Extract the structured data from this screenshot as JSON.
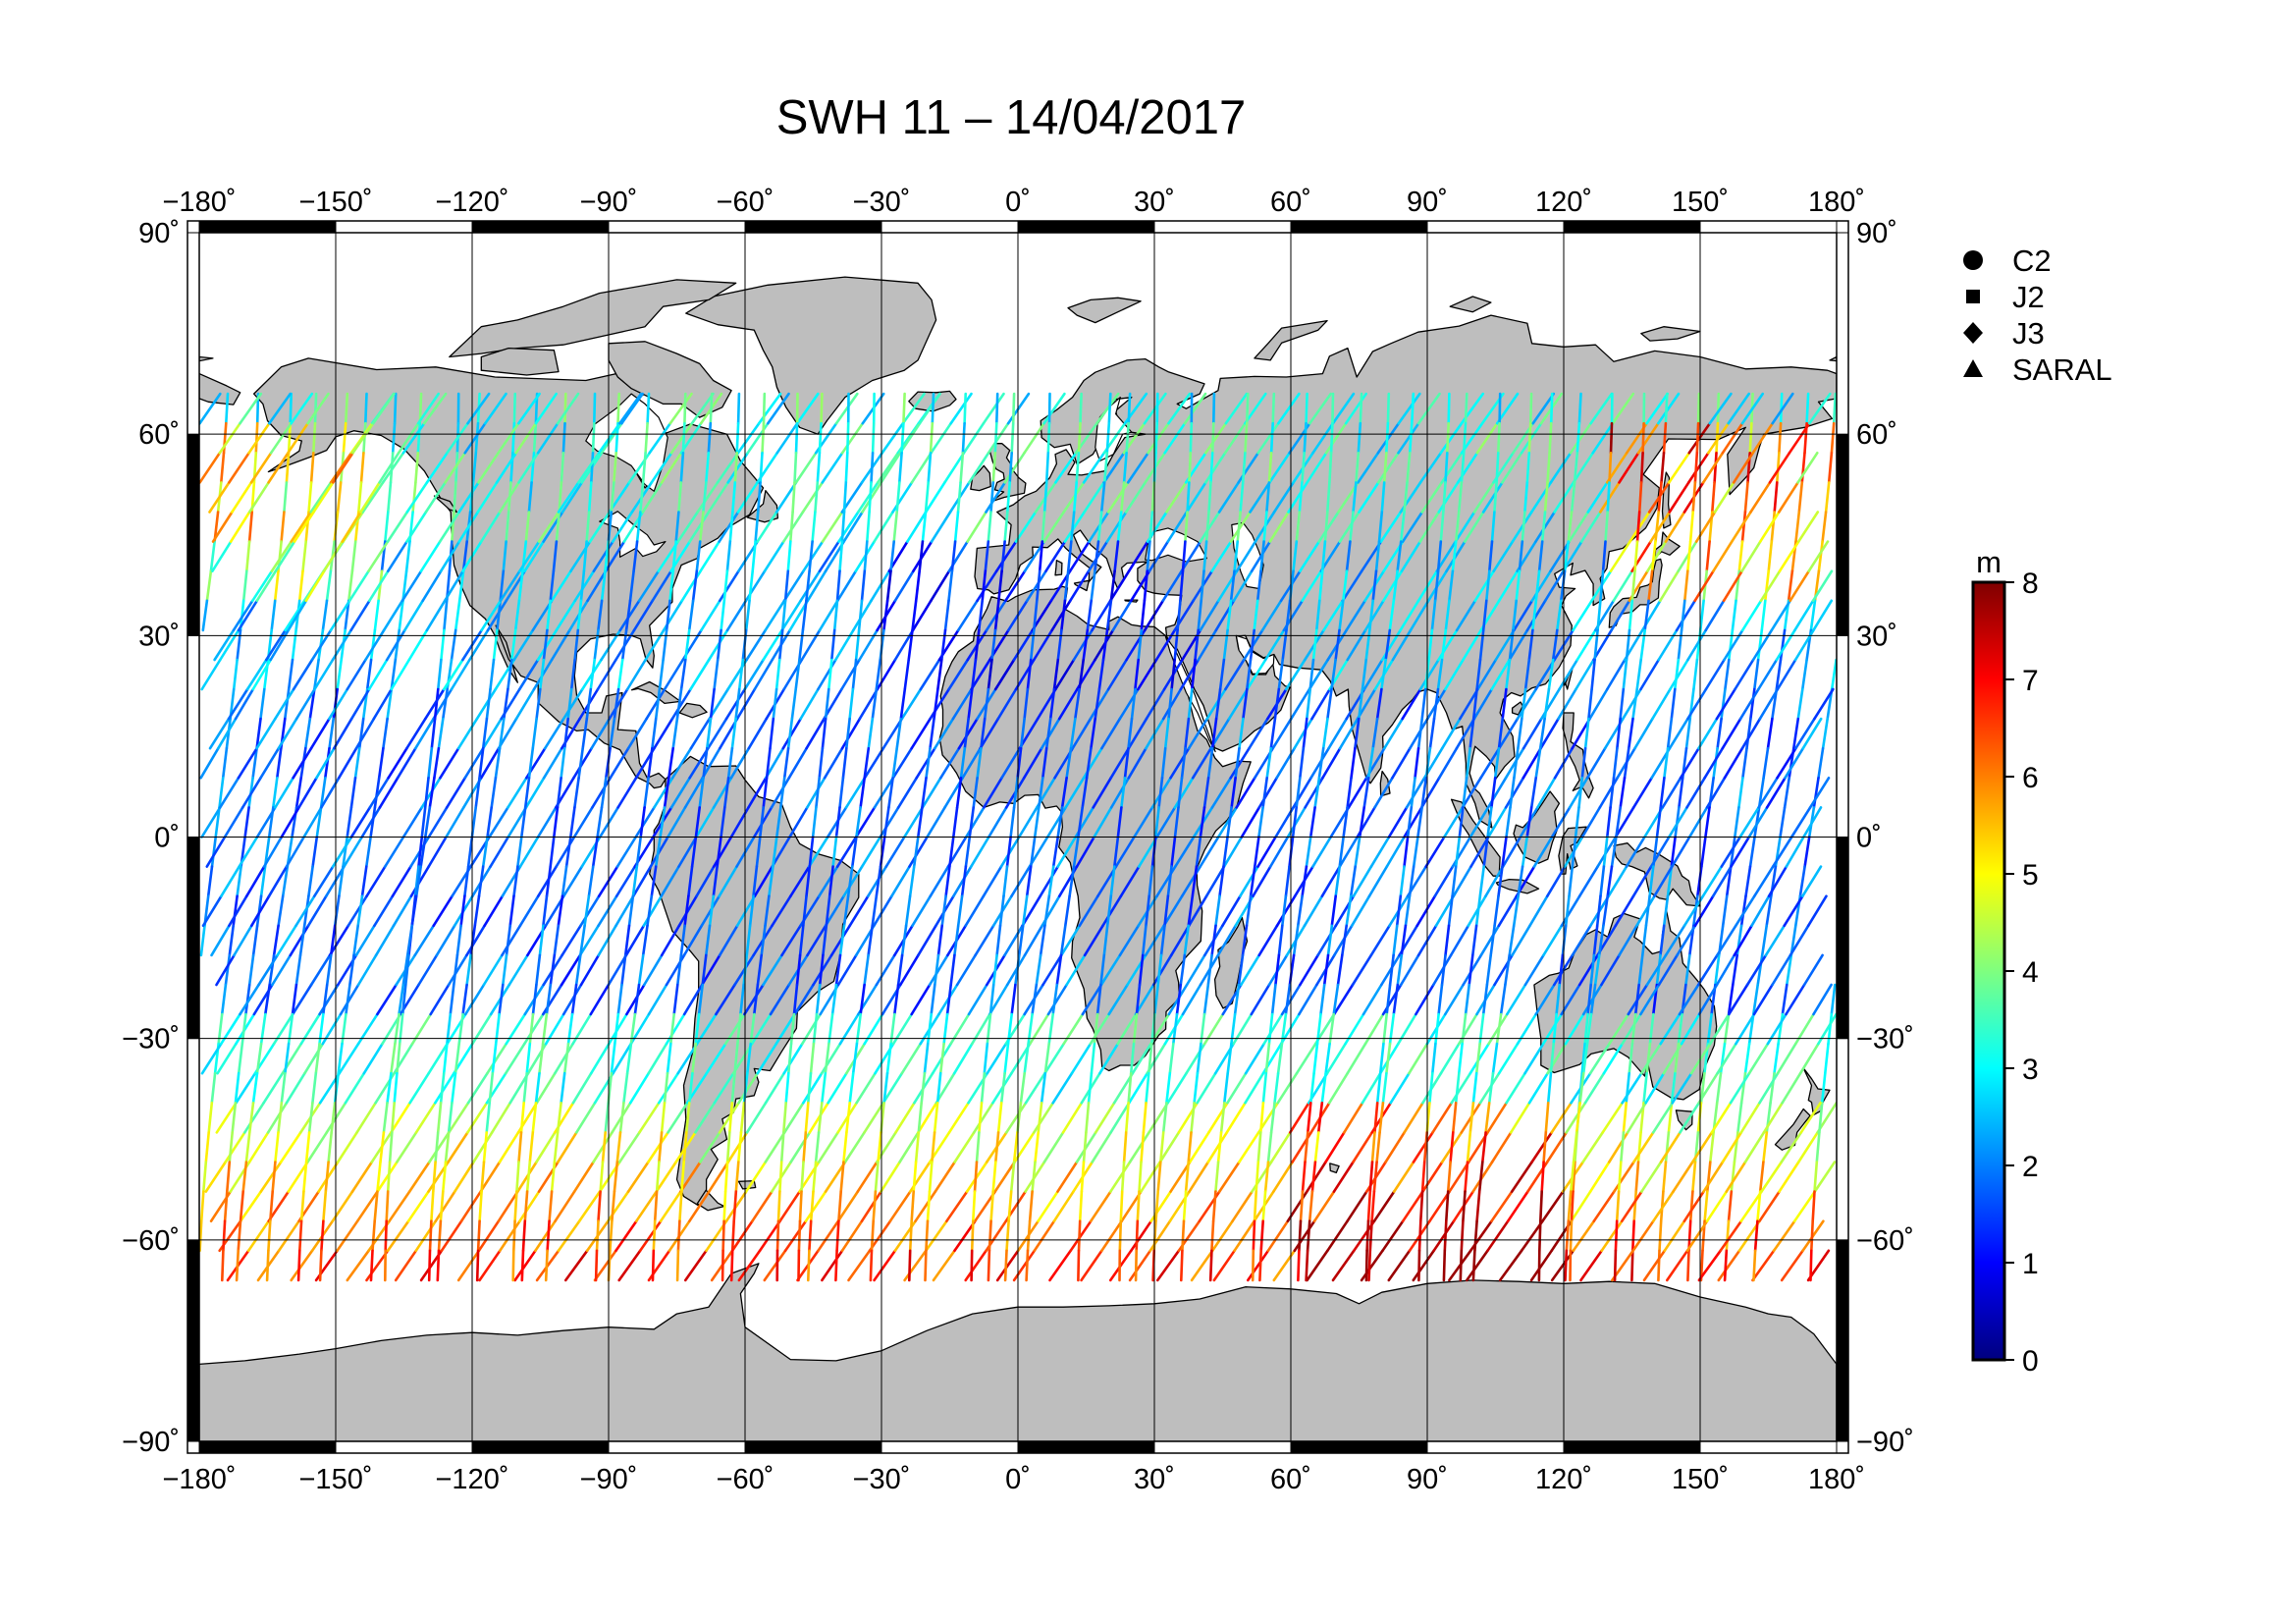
{
  "title": "SWH 11 – 14/04/2017",
  "map": {
    "projection": "equirectangular",
    "lon_range": [
      -180,
      180
    ],
    "lat_range": [
      -90,
      90
    ],
    "grid": true,
    "lon_ticks": [
      -180,
      -150,
      -120,
      -90,
      -60,
      -30,
      0,
      30,
      60,
      90,
      120,
      150,
      180
    ],
    "lat_ticks": [
      -90,
      -60,
      -30,
      0,
      30,
      60,
      90
    ],
    "lon_tick_labels": [
      "−180˚",
      "−150˚",
      "−120˚",
      "−90˚",
      "−60˚",
      "−30˚",
      "0˚",
      "30˚",
      "60˚",
      "90˚",
      "120˚",
      "150˚",
      "180˚"
    ],
    "lat_tick_labels": [
      "−90˚",
      "−60˚",
      "−30˚",
      "0˚",
      "30˚",
      "60˚",
      "90˚"
    ],
    "land_color": "#bebebe",
    "ocean_color": "#ffffff",
    "coast_color": "#000000",
    "track_coverage_lat": [
      -66,
      66
    ]
  },
  "legend": {
    "placement": "top-right",
    "items": [
      {
        "label": "C2",
        "symbol": "circle"
      },
      {
        "label": "J2",
        "symbol": "square"
      },
      {
        "label": "J3",
        "symbol": "diamond"
      },
      {
        "label": "SARAL",
        "symbol": "triangle"
      }
    ]
  },
  "colorbar": {
    "unit": "m",
    "min": 0,
    "max": 8,
    "ticks": [
      "0",
      "1",
      "2",
      "3",
      "4",
      "5",
      "6",
      "7",
      "8"
    ],
    "colormap": "jet",
    "colors": [
      "#00007f",
      "#0000ff",
      "#007fff",
      "#00ffff",
      "#7fff7f",
      "#ffff00",
      "#ff7f00",
      "#ff0000",
      "#7f0000"
    ]
  }
}
